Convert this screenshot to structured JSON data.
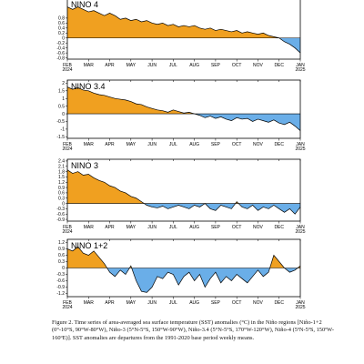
{
  "figure": {
    "caption": "Figure 2. Time series of area-averaged sea surface temperature (SST) anomalies (°C) in the Niño regions [Niño-1+2 (0°-10°S, 90°W-80°W), Niño-3 (5°N-5°S, 150°W-90°W), Niño-3.4 (5°N-5°S, 170°W-120°W), Niño-4 (5ºN-5ºS, 150ºW-160ºE)]. SST anomalies are departures from the 1991-2020 base period weekly means."
  },
  "colors": {
    "positive": "#f0a020",
    "negative": "#6aaee8",
    "line": "#000000"
  },
  "chart_data": [
    {
      "type": "area",
      "title": "NINO 4",
      "x_tick_labels": [
        "FEB",
        "MAR",
        "APR",
        "MAY",
        "JUN",
        "JUL",
        "AUG",
        "SEP",
        "OCT",
        "NOV",
        "DEC",
        "JAN"
      ],
      "x_year_labels": [
        "2024",
        "2025"
      ],
      "y_tick_labels": [
        "0.8",
        "0.6",
        "0.4",
        "0.2",
        "0",
        "-0.2",
        "-0.4",
        "-0.6",
        "-0.8"
      ],
      "ylim": [
        -0.85,
        1.6
      ],
      "x_months": [
        0.0,
        0.25,
        0.5,
        0.75,
        1.0,
        1.25,
        1.5,
        1.75,
        2.0,
        2.25,
        2.5,
        2.75,
        3.0,
        3.25,
        3.5,
        3.75,
        4.0,
        4.25,
        4.5,
        4.75,
        5.0,
        5.25,
        5.5,
        5.75,
        6.0,
        6.25,
        6.5,
        6.75,
        7.0,
        7.25,
        7.5,
        7.75,
        8.0,
        8.25,
        8.5,
        8.75,
        9.0,
        9.25,
        9.5,
        9.75,
        10.0,
        10.25,
        10.5,
        10.75,
        11.0
      ],
      "values": [
        1.25,
        1.15,
        1.25,
        1.15,
        1.05,
        1.1,
        1.0,
        0.9,
        1.0,
        0.9,
        0.75,
        0.8,
        0.7,
        0.75,
        0.65,
        0.7,
        0.6,
        0.55,
        0.6,
        0.5,
        0.55,
        0.45,
        0.5,
        0.45,
        0.5,
        0.4,
        0.35,
        0.4,
        0.3,
        0.35,
        0.3,
        0.25,
        0.3,
        0.2,
        0.25,
        0.2,
        0.15,
        0.2,
        0.1,
        0.05,
        0.0,
        -0.15,
        -0.25,
        -0.4,
        -0.6
      ]
    },
    {
      "type": "area",
      "title": "NINO 3.4",
      "x_tick_labels": [
        "FEB",
        "MAR",
        "APR",
        "MAY",
        "JUN",
        "JUL",
        "AUG",
        "SEP",
        "OCT",
        "NOV",
        "DEC",
        "JAN"
      ],
      "x_year_labels": [
        "2024",
        "2025"
      ],
      "y_tick_labels": [
        "2",
        "1.5",
        "1",
        "0.5",
        "0",
        "-0.5",
        "-1",
        "-1.5"
      ],
      "ylim": [
        -1.6,
        2.2
      ],
      "x_months": [
        0.0,
        0.25,
        0.5,
        0.75,
        1.0,
        1.25,
        1.5,
        1.75,
        2.0,
        2.25,
        2.5,
        2.75,
        3.0,
        3.25,
        3.5,
        3.75,
        4.0,
        4.25,
        4.5,
        4.75,
        5.0,
        5.25,
        5.5,
        5.75,
        6.0,
        6.25,
        6.5,
        6.75,
        7.0,
        7.25,
        7.5,
        7.75,
        8.0,
        8.25,
        8.5,
        8.75,
        9.0,
        9.25,
        9.5,
        9.75,
        10.0,
        10.25,
        10.5,
        10.75,
        11.0
      ],
      "values": [
        1.75,
        1.6,
        1.7,
        1.55,
        1.5,
        1.35,
        1.25,
        1.2,
        1.1,
        1.0,
        0.95,
        0.9,
        0.8,
        0.65,
        0.6,
        0.45,
        0.35,
        0.25,
        0.2,
        0.1,
        0.25,
        0.15,
        0.05,
        0.1,
        0.0,
        -0.1,
        -0.25,
        -0.15,
        -0.3,
        -0.2,
        -0.35,
        -0.45,
        -0.25,
        -0.35,
        -0.3,
        -0.5,
        -0.35,
        -0.45,
        -0.55,
        -0.4,
        -0.6,
        -0.7,
        -0.55,
        -0.8,
        -1.1
      ]
    },
    {
      "type": "area",
      "title": "NINO 3",
      "x_tick_labels": [
        "FEB",
        "MAR",
        "APR",
        "MAY",
        "JUN",
        "JUL",
        "AUG",
        "SEP",
        "OCT",
        "NOV",
        "DEC",
        "JAN"
      ],
      "x_year_labels": [
        "2024",
        "2025"
      ],
      "y_tick_labels": [
        "2.4",
        "2.1",
        "1.8",
        "1.5",
        "1.2",
        "0.9",
        "0.6",
        "0.3",
        "0",
        "-0.3",
        "-0.6",
        "-0.9"
      ],
      "ylim": [
        -1.0,
        2.5
      ],
      "x_months": [
        0.0,
        0.25,
        0.5,
        0.75,
        1.0,
        1.25,
        1.5,
        1.75,
        2.0,
        2.25,
        2.5,
        2.75,
        3.0,
        3.25,
        3.5,
        3.75,
        4.0,
        4.25,
        4.5,
        4.75,
        5.0,
        5.25,
        5.5,
        5.75,
        6.0,
        6.25,
        6.5,
        6.75,
        7.0,
        7.25,
        7.5,
        7.75,
        8.0,
        8.25,
        8.5,
        8.75,
        9.0,
        9.25,
        9.5,
        9.75,
        10.0,
        10.25,
        10.5,
        10.75,
        11.0
      ],
      "values": [
        1.9,
        1.7,
        1.8,
        1.6,
        1.65,
        1.45,
        1.3,
        1.2,
        1.0,
        0.9,
        0.7,
        0.6,
        0.4,
        0.3,
        0.1,
        -0.1,
        -0.2,
        -0.25,
        -0.15,
        -0.3,
        -0.2,
        -0.1,
        -0.2,
        -0.3,
        -0.1,
        -0.2,
        0.0,
        -0.3,
        -0.4,
        -0.1,
        -0.2,
        -0.3,
        0.1,
        -0.2,
        -0.3,
        -0.1,
        -0.4,
        -0.2,
        -0.3,
        -0.1,
        -0.3,
        -0.5,
        -0.3,
        -0.6,
        -0.2
      ]
    },
    {
      "type": "area",
      "title": "NINO 1+2",
      "x_tick_labels": [
        "FEB",
        "MAR",
        "APR",
        "MAY",
        "JUN",
        "JUL",
        "AUG",
        "SEP",
        "OCT",
        "NOV",
        "DEC",
        "JAN"
      ],
      "x_year_labels": [
        "2024",
        "2025"
      ],
      "y_tick_labels": [
        "1.2",
        "0.9",
        "0.6",
        "0.3",
        "0",
        "-0.3",
        "-0.6",
        "-0.9",
        "-1.2"
      ],
      "ylim": [
        -1.35,
        1.35
      ],
      "x_months": [
        0.0,
        0.25,
        0.5,
        0.75,
        1.0,
        1.25,
        1.5,
        1.75,
        2.0,
        2.25,
        2.5,
        2.75,
        3.0,
        3.25,
        3.5,
        3.75,
        4.0,
        4.25,
        4.5,
        4.75,
        5.0,
        5.25,
        5.5,
        5.75,
        6.0,
        6.25,
        6.5,
        6.75,
        7.0,
        7.25,
        7.5,
        7.75,
        8.0,
        8.25,
        8.5,
        8.75,
        9.0,
        9.25,
        9.5,
        9.75,
        10.0,
        10.25,
        10.5,
        10.75,
        11.0
      ],
      "values": [
        0.9,
        0.8,
        1.0,
        0.7,
        0.6,
        0.8,
        0.5,
        0.2,
        -0.2,
        -0.4,
        -0.1,
        -0.3,
        0.1,
        -0.6,
        -1.1,
        -1.15,
        -0.9,
        -0.4,
        -0.5,
        -0.2,
        -0.3,
        -0.8,
        -0.4,
        -0.2,
        -0.6,
        -0.3,
        -0.9,
        -0.5,
        -0.2,
        -0.7,
        -0.4,
        -0.6,
        -0.3,
        -0.5,
        -0.7,
        -0.4,
        -0.1,
        -0.4,
        -0.2,
        0.6,
        0.3,
        0.0,
        -0.2,
        -0.1,
        0.1
      ]
    }
  ]
}
